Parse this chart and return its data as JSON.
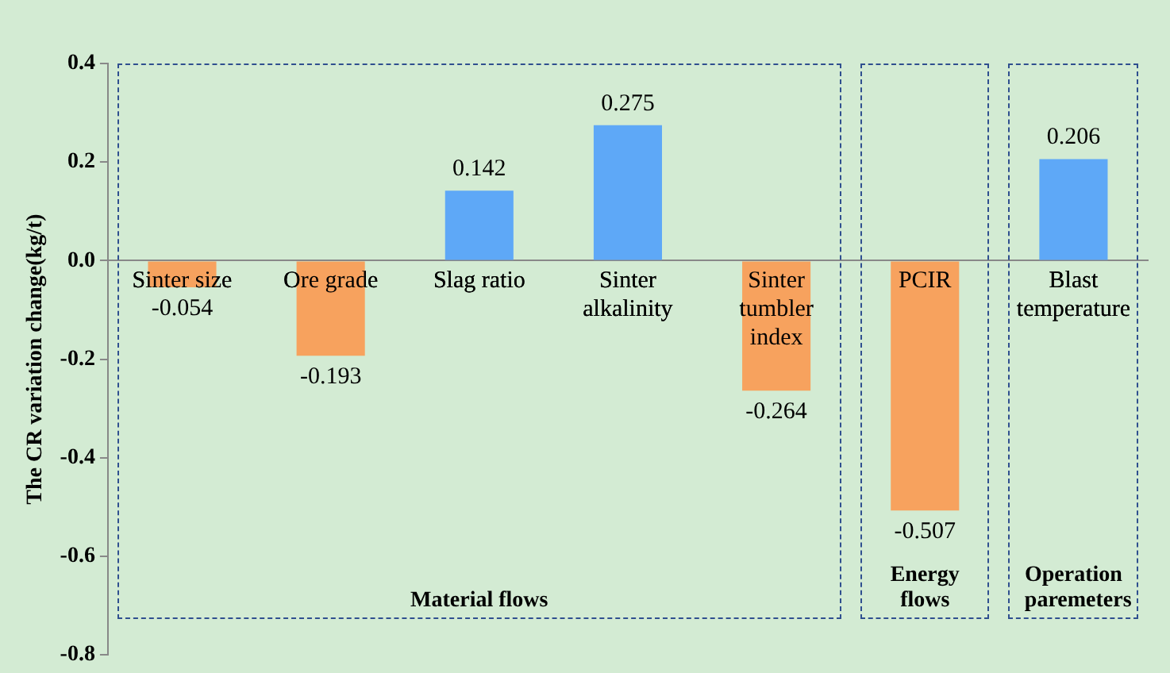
{
  "chart_data": {
    "type": "bar",
    "ylabel": "The CR variation change(kg/t)",
    "categories": [
      "Sinter size",
      "Ore grade",
      "Slag ratio",
      "Sinter alkalinity",
      "Sinter tumbler index",
      "PCIR",
      "Blast temperature"
    ],
    "values": [
      -0.054,
      -0.193,
      0.142,
      0.275,
      -0.264,
      -0.507,
      0.206
    ],
    "colors": [
      "#f7a25e",
      "#f7a25e",
      "#5ea8f7",
      "#5ea8f7",
      "#f7a25e",
      "#f7a25e",
      "#5ea8f7"
    ],
    "ylim": [
      -0.8,
      0.4
    ],
    "yticks": [
      {
        "value": -0.8,
        "label": "-0.8"
      },
      {
        "value": -0.6,
        "label": "-0.6"
      },
      {
        "value": -0.4,
        "label": "-0.4"
      },
      {
        "value": -0.2,
        "label": "-0.2"
      },
      {
        "value": 0,
        "label": "0.0"
      },
      0.2,
      0.4
    ],
    "data_labels": true,
    "grid": false,
    "legend": false,
    "annotations": [
      "Material flows",
      "Energy flows",
      "Operation paremeters"
    ]
  }
}
